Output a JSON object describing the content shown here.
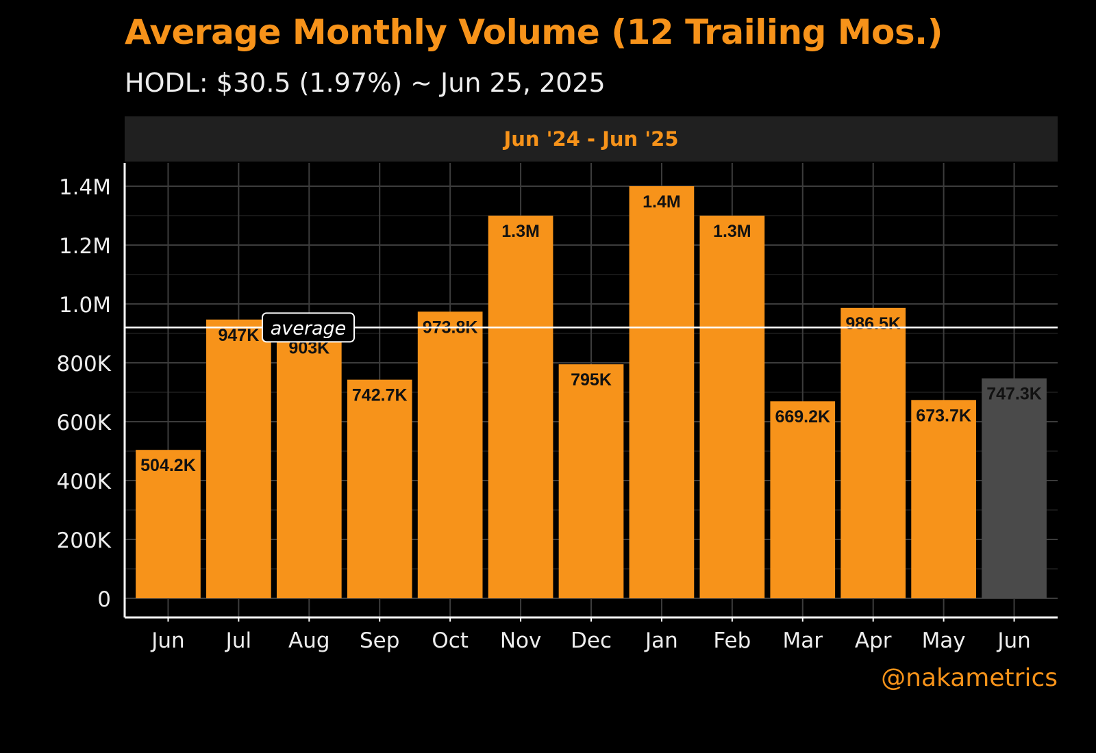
{
  "title": "Average Monthly Volume (12 Trailing Mos.)",
  "subtitle": "HODL: $30.5 (1.97%) ~ Jun 25, 2025",
  "facet_label": "Jun '24 - Jun '25",
  "credit": "@nakametrics",
  "colors": {
    "background": "#000000",
    "bar": "#F7931A",
    "bar_current": "#4A4A4A",
    "grid": "#3C3C3C",
    "axis": "#FFFFFF",
    "text": "#EDEDED",
    "strip": "#202020"
  },
  "chart_data": {
    "type": "bar",
    "categories": [
      "Jun",
      "Jul",
      "Aug",
      "Sep",
      "Oct",
      "Nov",
      "Dec",
      "Jan",
      "Feb",
      "Mar",
      "Apr",
      "May",
      "Jun"
    ],
    "values": [
      504200,
      947000,
      903000,
      742700,
      973800,
      1300000,
      795000,
      1400000,
      1300000,
      669200,
      986500,
      673700,
      747300
    ],
    "data_labels": [
      "504.2K",
      "947K",
      "903K",
      "742.7K",
      "973.8K",
      "1.3M",
      "795K",
      "1.4M",
      "1.3M",
      "669.2K",
      "986.5K",
      "673.7K",
      "747.3K"
    ],
    "highlight_last": true,
    "ylim": [
      0,
      1480000
    ],
    "yticks": [
      0,
      200000,
      400000,
      600000,
      800000,
      1000000,
      1200000,
      1400000
    ],
    "ytick_labels": [
      "0",
      "200K",
      "400K",
      "600K",
      "800K",
      "1.0M",
      "1.2M",
      "1.4M"
    ],
    "reference_line": {
      "label": "average",
      "value": 920000
    },
    "grid": true,
    "xlabel": "",
    "ylabel": ""
  }
}
